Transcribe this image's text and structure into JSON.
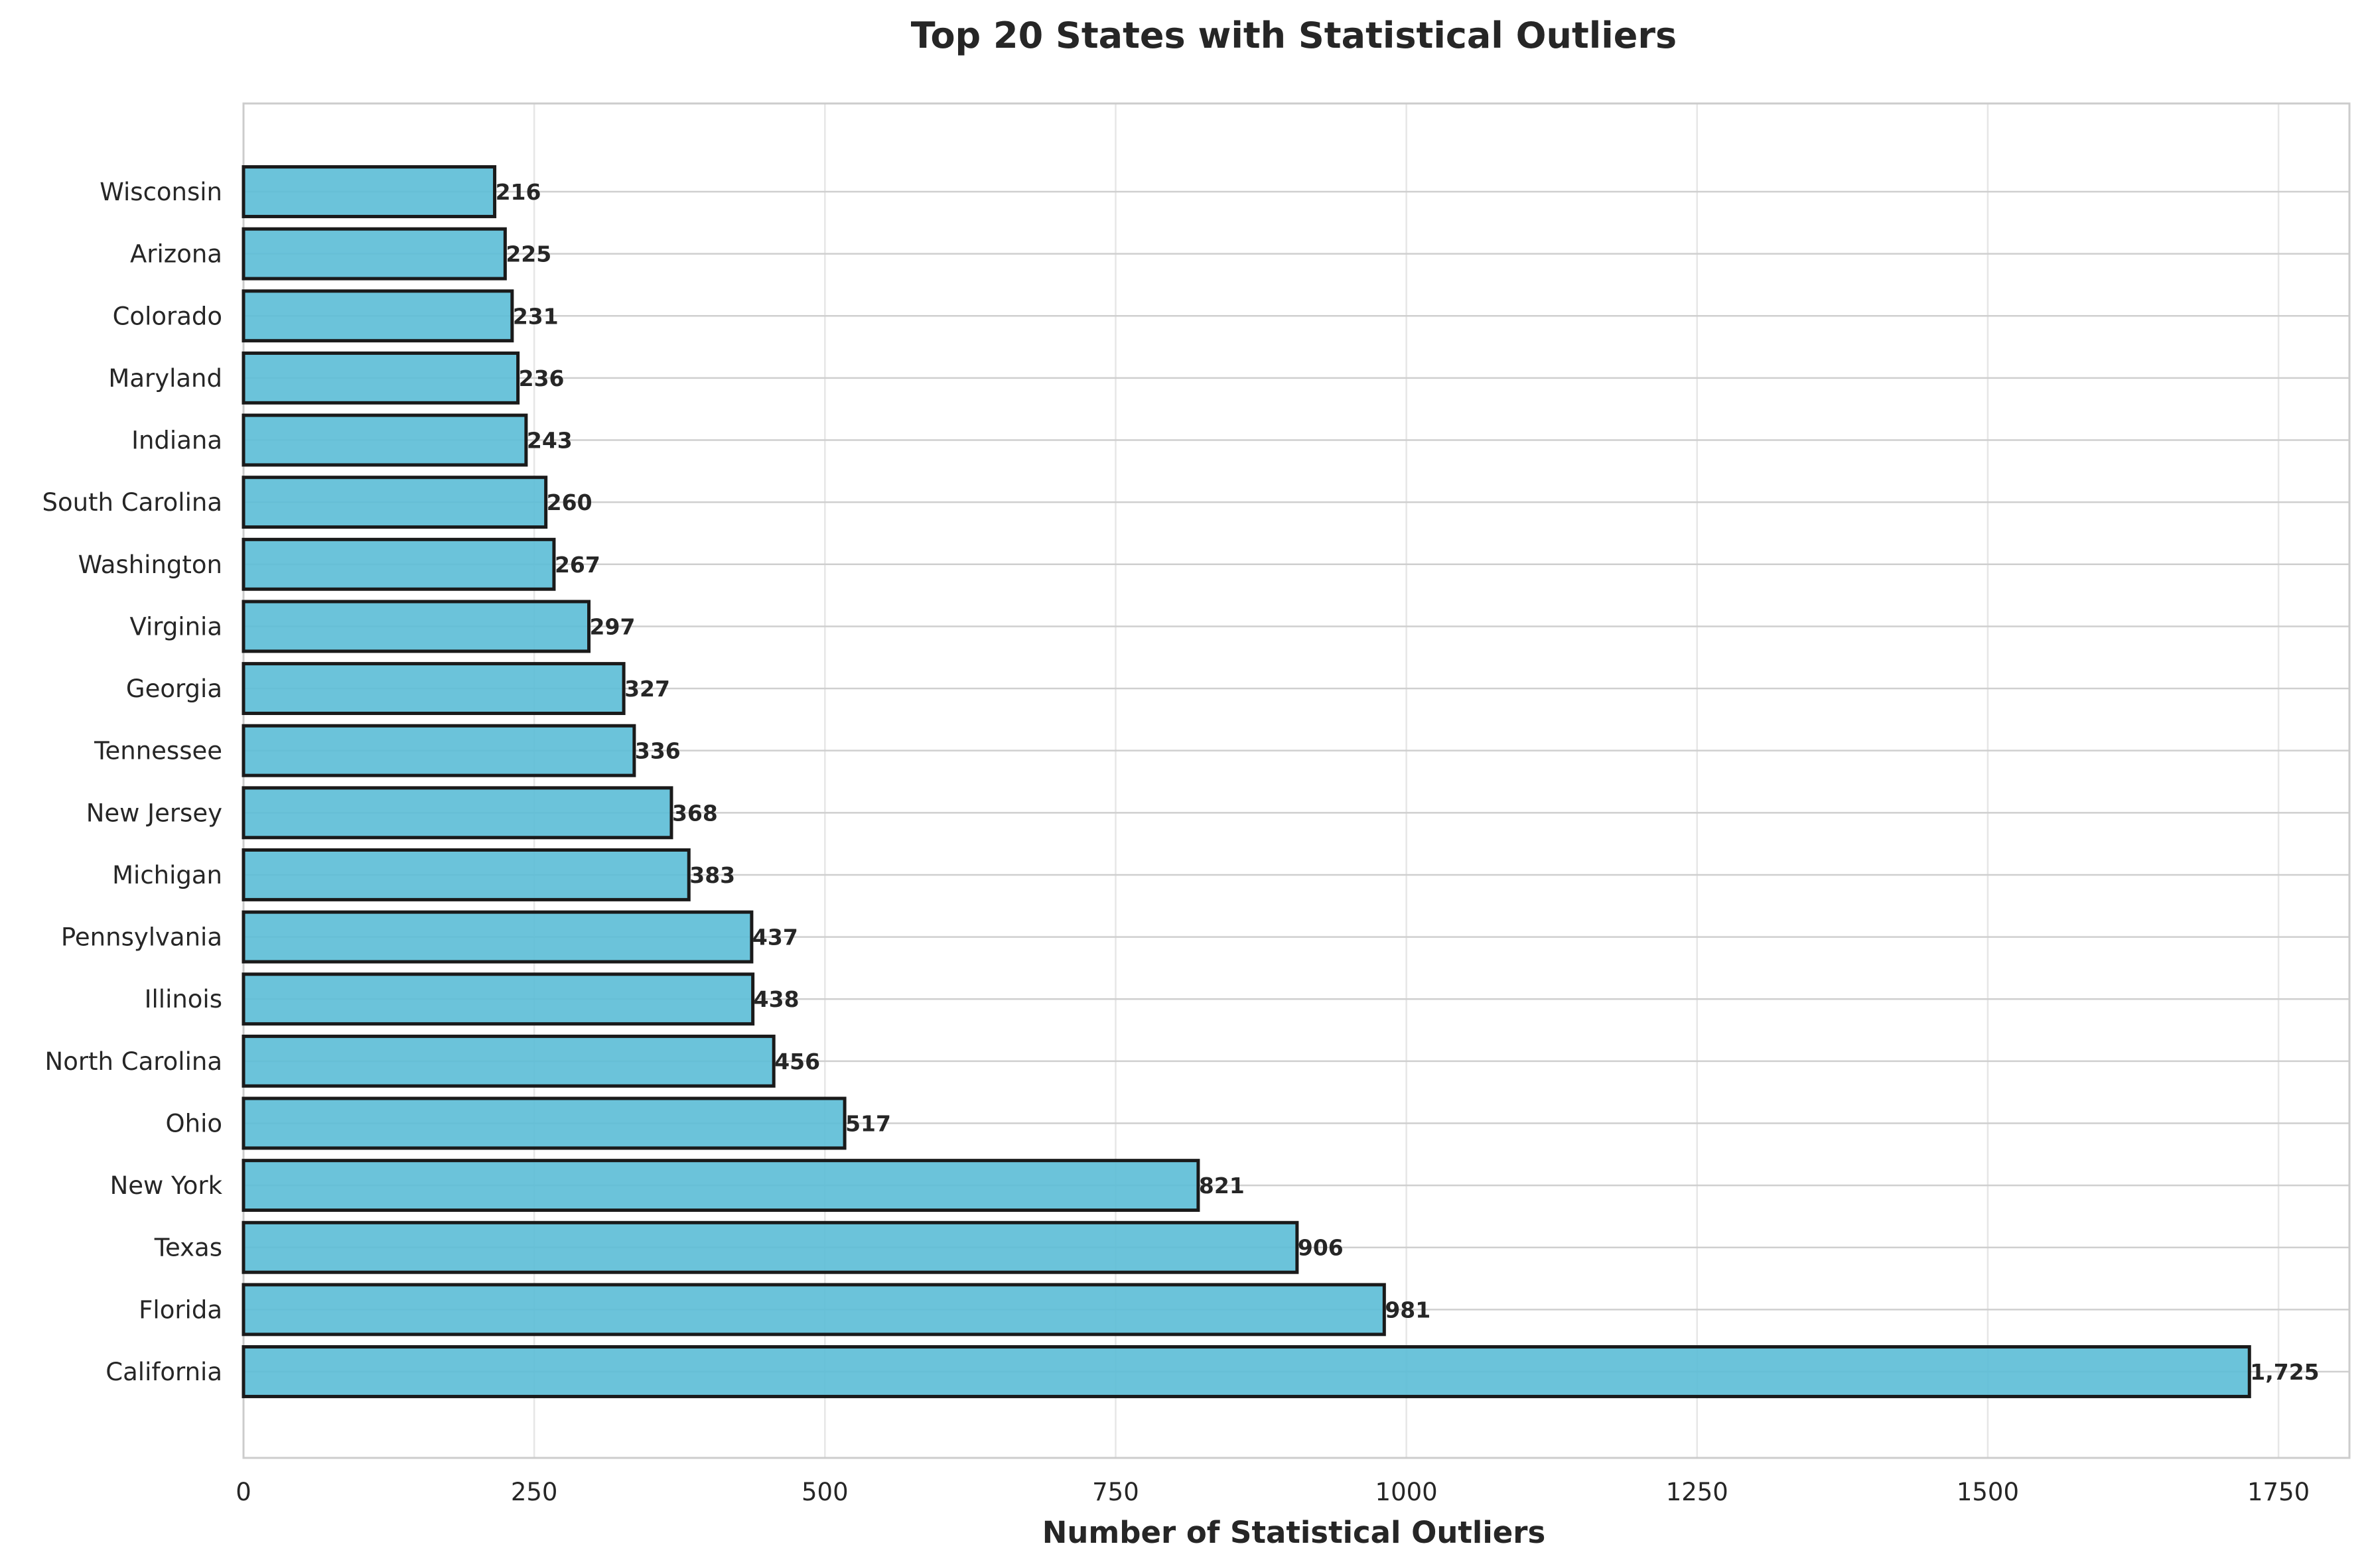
{
  "chart_data": {
    "type": "bar",
    "orientation": "horizontal",
    "title": "Top 20 States with Statistical Outliers",
    "xlabel": "Number of Statistical Outliers",
    "ylabel": "",
    "xlim": [
      0,
      1811
    ],
    "xticks": [
      0,
      250,
      500,
      750,
      1000,
      1250,
      1500,
      1750
    ],
    "grid": true,
    "bar_color": "#5bbcd6",
    "edge_color": "#1a1a1a",
    "categories": [
      "Wisconsin",
      "Arizona",
      "Colorado",
      "Maryland",
      "Indiana",
      "South Carolina",
      "Washington",
      "Virginia",
      "Georgia",
      "Tennessee",
      "New Jersey",
      "Michigan",
      "Pennsylvania",
      "Illinois",
      "North Carolina",
      "Ohio",
      "New York",
      "Texas",
      "Florida",
      "California"
    ],
    "values": [
      216,
      225,
      231,
      236,
      243,
      260,
      267,
      297,
      327,
      336,
      368,
      383,
      437,
      438,
      456,
      517,
      821,
      906,
      981,
      1725
    ],
    "value_labels": [
      "216",
      "225",
      "231",
      "236",
      "243",
      "260",
      "267",
      "297",
      "327",
      "336",
      "368",
      "383",
      "437",
      "438",
      "456",
      "517",
      "821",
      "906",
      "981",
      "1,725"
    ]
  }
}
